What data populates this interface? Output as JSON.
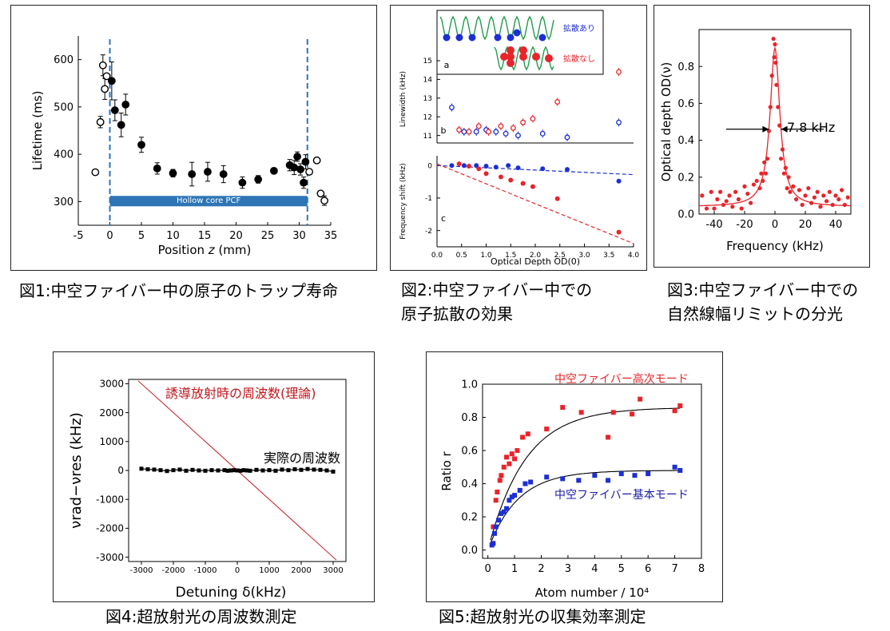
{
  "captions": {
    "fig1": "図1:中空ファイバー中の原子のトラップ寿命",
    "fig2_line1": "図2:中空ファイバー中での",
    "fig2_line2": "原子拡散の効果",
    "fig3_line1": "図3:中空ファイバー中での",
    "fig3_line2": "自然線幅リミットの分光",
    "fig4": "図4:超放射光の周波数測定",
    "fig5": "図5:超放射光の収集効率測定"
  },
  "colors": {
    "red": "#e8242a",
    "blue": "#1b2fd4",
    "dark_red": "#c0181e",
    "dark_blue": "#1a1aa8",
    "pcf_bar": "#2e75b6"
  },
  "chart_data": [
    {
      "id": "fig1",
      "type": "scatter",
      "xlabel": "Position z (mm)",
      "ylabel": "Lifetime (ms)",
      "xlim": [
        -5,
        35
      ],
      "ylim": [
        250,
        650
      ],
      "xticks": [
        -5,
        0,
        5,
        10,
        15,
        20,
        25,
        30,
        35
      ],
      "yticks": [
        300,
        400,
        500,
        600
      ],
      "annotation": "Hollow core PCF",
      "vlines": [
        0,
        31.3
      ],
      "series": [
        {
          "marker": "filled-circle",
          "x": [
            0.3,
            0.8,
            1.8,
            2.5,
            5,
            7.5,
            10,
            13,
            15.5,
            18,
            21,
            23.5,
            26,
            28.5,
            29.2,
            29.7,
            30.2,
            30.7,
            31
          ],
          "y": [
            555,
            493,
            462,
            505,
            420,
            370,
            360,
            358,
            363,
            358,
            340,
            347,
            365,
            377,
            372,
            395,
            368,
            340,
            384
          ],
          "err": [
            40,
            22,
            25,
            22,
            16,
            12,
            8,
            25,
            20,
            18,
            12,
            8,
            6,
            12,
            15,
            10,
            12,
            12,
            15
          ]
        },
        {
          "marker": "open-circle",
          "x": [
            -2.3,
            -1.5,
            -1.1,
            -0.8,
            -0.5,
            31.6,
            32.8,
            33.4,
            34
          ],
          "y": [
            362,
            468,
            588,
            538,
            565,
            363,
            387,
            317,
            302
          ],
          "err": [
            0,
            12,
            22,
            22,
            0,
            0,
            0,
            0,
            10
          ]
        }
      ]
    },
    {
      "id": "fig2",
      "type": "scatter",
      "legend": [
        "拡散あり",
        "拡散なし"
      ],
      "panel_labels": [
        "a",
        "b",
        "c"
      ],
      "xlabel": "Optical Depth OD(0)",
      "xlim": [
        0,
        4
      ],
      "xticks": [
        0.0,
        0.5,
        1.0,
        1.5,
        2.0,
        2.5,
        3.0,
        3.5,
        4.0
      ],
      "panel_b": {
        "ylabel": "Linewidth (kHz)",
        "ylim": [
          10.6,
          15.3
        ],
        "yticks": [
          11,
          12,
          13,
          14,
          15
        ],
        "series": [
          {
            "color": "blue",
            "x": [
              0.3,
              0.55,
              0.8,
              1.0,
              1.2,
              1.4,
              1.65,
              2.15,
              2.65,
              3.7
            ],
            "y": [
              12.5,
              11.2,
              11.2,
              11.3,
              11.2,
              11.1,
              11.0,
              11.1,
              10.9,
              11.7
            ]
          },
          {
            "color": "red",
            "x": [
              0.45,
              0.65,
              0.85,
              1.05,
              1.3,
              1.55,
              1.75,
              1.95,
              2.45,
              3.7
            ],
            "y": [
              11.3,
              11.2,
              11.5,
              11.2,
              11.5,
              11.4,
              11.7,
              11.9,
              12.8,
              14.4
            ]
          }
        ]
      },
      "panel_c": {
        "ylabel": "Frequency shift (kHz)",
        "ylim": [
          -2.5,
          0.3
        ],
        "yticks": [
          0,
          -1,
          -2
        ],
        "series": [
          {
            "color": "blue",
            "x": [
              0.3,
              0.55,
              0.8,
              1.0,
              1.2,
              1.45,
              1.65,
              2.15,
              2.65,
              3.7
            ],
            "y": [
              0.0,
              0.0,
              0.0,
              -0.02,
              -0.05,
              0.0,
              -0.07,
              -0.1,
              -0.12,
              -0.48
            ]
          },
          {
            "color": "red",
            "x": [
              0.45,
              0.65,
              0.85,
              1.0,
              1.3,
              1.5,
              1.75,
              1.95,
              2.45,
              3.7
            ],
            "y": [
              0.05,
              -0.02,
              -0.1,
              -0.25,
              -0.35,
              -0.45,
              -0.55,
              -0.65,
              -1.02,
              -2.05
            ]
          }
        ],
        "fits": [
          {
            "color": "blue",
            "from": [
              0,
              0
            ],
            "to": [
              4,
              -0.28
            ]
          },
          {
            "color": "red",
            "from": [
              0,
              0.05
            ],
            "to": [
              4,
              -2.4
            ]
          }
        ]
      }
    },
    {
      "id": "fig3",
      "type": "scatter",
      "xlabel": "Frequency (kHz)",
      "ylabel": "Optical depth OD(ν)",
      "xlim": [
        -50,
        50
      ],
      "ylim": [
        0,
        1.0
      ],
      "xticks": [
        -40,
        -20,
        0,
        20,
        40
      ],
      "yticks": [
        0.0,
        0.2,
        0.4,
        0.6,
        0.8
      ],
      "annotation": "7.8 kHz",
      "fit": {
        "type": "lorentzian",
        "center": 0,
        "fwhm": 7.8,
        "peak": 0.9,
        "offset": 0.04
      },
      "x": [
        -48,
        -45,
        -42,
        -40,
        -38,
        -36,
        -34,
        -32,
        -30,
        -28,
        -26,
        -24,
        -22,
        -20,
        -18,
        -16,
        -14,
        -12,
        -10,
        -9,
        -8,
        -7,
        -6,
        -5,
        -4,
        -3,
        -2,
        -1,
        -0.5,
        0,
        0.5,
        1,
        2,
        3,
        4,
        5,
        6,
        7,
        8,
        9,
        10,
        12,
        14,
        16,
        18,
        20,
        22,
        24,
        26,
        28,
        30,
        32,
        34,
        36,
        38,
        40,
        42,
        44,
        46,
        48
      ],
      "y": [
        0.1,
        0.03,
        0.12,
        0.03,
        0.08,
        0.12,
        0.05,
        0.07,
        0.1,
        0.04,
        0.12,
        0.08,
        0.03,
        0.15,
        0.11,
        0.06,
        0.16,
        0.18,
        0.14,
        0.22,
        0.18,
        0.28,
        0.22,
        0.3,
        0.45,
        0.58,
        0.75,
        0.95,
        0.85,
        0.92,
        0.82,
        0.7,
        0.58,
        0.48,
        0.3,
        0.35,
        0.22,
        0.25,
        0.14,
        0.2,
        0.12,
        0.15,
        0.08,
        0.13,
        0.05,
        0.1,
        0.14,
        0.06,
        0.09,
        0.12,
        0.04,
        0.1,
        0.07,
        0.12,
        0.05,
        0.1,
        0.08,
        0.13,
        0.05,
        0.09
      ]
    },
    {
      "id": "fig4",
      "type": "line",
      "xlabel": "Detuning δ(kHz)",
      "ylabel": "νrad−νres (kHz)",
      "xlim": [
        -3400,
        3400
      ],
      "ylim": [
        -3150,
        3150
      ],
      "xticks": [
        -3000,
        -2000,
        -1000,
        0,
        1000,
        2000,
        3000
      ],
      "yticks": [
        3000,
        2000,
        1000,
        0,
        -1000,
        -2000,
        -3000
      ],
      "series": [
        {
          "name": "誘導放射時の周波数(理論)",
          "color": "red",
          "x": [
            -3100,
            3100
          ],
          "y": [
            3100,
            -3100
          ]
        },
        {
          "name": "実際の周波数",
          "color": "black",
          "x": [
            -3000,
            -2800,
            -2600,
            -2400,
            -2200,
            -2000,
            -1800,
            -1600,
            -1400,
            -1200,
            -1000,
            -800,
            -600,
            -400,
            -300,
            -200,
            -100,
            0,
            100,
            200,
            300,
            400,
            600,
            800,
            1000,
            1200,
            1400,
            1600,
            1800,
            2000,
            2200,
            2400,
            2600,
            2800,
            3000
          ],
          "y": [
            60,
            40,
            30,
            10,
            -20,
            10,
            30,
            -10,
            20,
            0,
            -10,
            10,
            0,
            10,
            -10,
            0,
            10,
            0,
            -10,
            10,
            0,
            -10,
            20,
            0,
            10,
            -10,
            30,
            10,
            40,
            20,
            50,
            30,
            20,
            0,
            -40
          ]
        }
      ]
    },
    {
      "id": "fig5",
      "type": "scatter",
      "xlabel": "Atom number / 10⁴",
      "ylabel": "Ratio r",
      "xlim": [
        -0.2,
        8
      ],
      "ylim": [
        -0.05,
        1.0
      ],
      "xticks": [
        0,
        1,
        2,
        3,
        4,
        5,
        6,
        7,
        8
      ],
      "yticks": [
        0.0,
        0.2,
        0.4,
        0.6,
        0.8,
        1.0
      ],
      "series": [
        {
          "name": "中空ファイバー高次モード",
          "color": "red",
          "x": [
            0.2,
            0.3,
            0.35,
            0.45,
            0.5,
            0.6,
            0.7,
            0.8,
            0.9,
            1.0,
            1.1,
            1.3,
            1.5,
            2.2,
            2.8,
            3.5,
            4.5,
            4.7,
            5.4,
            5.7,
            7.0,
            7.2
          ],
          "y": [
            0.14,
            0.3,
            0.35,
            0.42,
            0.45,
            0.5,
            0.56,
            0.52,
            0.58,
            0.55,
            0.6,
            0.68,
            0.7,
            0.73,
            0.86,
            0.83,
            0.68,
            0.83,
            0.82,
            0.91,
            0.84,
            0.87
          ],
          "fit": {
            "a": 0.86,
            "k": 0.72
          }
        },
        {
          "name": "中空ファイバー基本モード",
          "color": "blue",
          "x": [
            0.15,
            0.2,
            0.25,
            0.3,
            0.4,
            0.5,
            0.6,
            0.7,
            0.8,
            0.9,
            1.0,
            1.2,
            1.4,
            1.6,
            2.2,
            2.8,
            3.4,
            4.0,
            4.5,
            5.0,
            5.5,
            6.0,
            7.0,
            7.2
          ],
          "y": [
            0.03,
            0.04,
            0.1,
            0.14,
            0.18,
            0.22,
            0.23,
            0.25,
            0.3,
            0.32,
            0.33,
            0.36,
            0.4,
            0.41,
            0.44,
            0.43,
            0.42,
            0.45,
            0.42,
            0.46,
            0.45,
            0.46,
            0.5,
            0.48
          ],
          "fit": {
            "a": 0.48,
            "k": 0.9
          }
        }
      ]
    }
  ]
}
